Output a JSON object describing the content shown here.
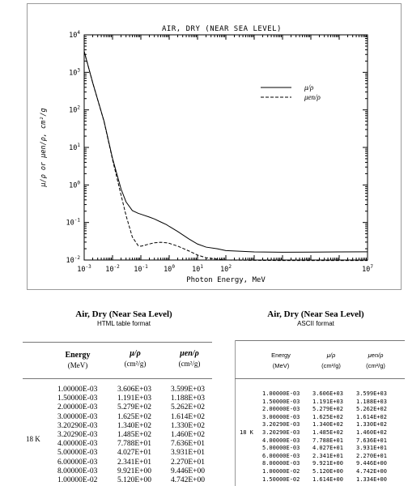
{
  "chart_data": {
    "type": "line",
    "title": "AIR, DRY (NEAR SEA LEVEL)",
    "xlabel": "Photon Energy, MeV",
    "ylabel": "μ/ρ  or  μen/ρ,  cm²/g",
    "x_scale": "log",
    "y_scale": "log",
    "xlim": [
      0.001,
      10000000
    ],
    "ylim": [
      0.01,
      10000
    ],
    "x_ticks": [
      "10-3",
      "10-2",
      "10-1",
      "100",
      "101",
      "102"
    ],
    "x_last_tick": "107",
    "y_ticks": [
      "10-2",
      "10-1",
      "100",
      "101",
      "102",
      "103",
      "104"
    ],
    "legend": {
      "placement": "right-middle",
      "entries": [
        "μ/ρ",
        "μen/ρ"
      ]
    },
    "series": [
      {
        "name": "μ/ρ",
        "style": "solid",
        "x": [
          0.001,
          0.002,
          0.005,
          0.01,
          0.02,
          0.03,
          0.05,
          0.08,
          0.1,
          0.2,
          0.3,
          0.5,
          0.8,
          1,
          2,
          5,
          10,
          20,
          50,
          100,
          1000,
          10000,
          100000,
          1000000,
          10000000
        ],
        "y": [
          3606,
          527.9,
          50.77,
          5.12,
          0.7779,
          0.3538,
          0.208,
          0.1757,
          0.1662,
          0.1394,
          0.1242,
          0.1034,
          0.08765,
          0.07868,
          0.05737,
          0.03633,
          0.02669,
          0.02208,
          0.0199,
          0.01781,
          0.0164,
          0.0161,
          0.0162,
          0.0164,
          0.0165
        ]
      },
      {
        "name": "μen/ρ",
        "style": "dashed",
        "x": [
          0.001,
          0.002,
          0.005,
          0.01,
          0.02,
          0.03,
          0.05,
          0.08,
          0.1,
          0.2,
          0.3,
          0.5,
          0.8,
          1,
          2,
          5,
          10,
          20,
          50,
          100,
          1000,
          10000,
          100000,
          1000000,
          10000000
        ],
        "y": [
          3599,
          526.2,
          49.62,
          4.742,
          0.5389,
          0.1537,
          0.04098,
          0.02429,
          0.02325,
          0.02672,
          0.02872,
          0.02966,
          0.02882,
          0.02789,
          0.02345,
          0.01739,
          0.01356,
          0.0115,
          0.0105,
          0.01,
          0.0098,
          0.0097,
          0.0097,
          0.0097,
          0.0097
        ]
      }
    ]
  },
  "html_table": {
    "title": "Air, Dry (Near Sea Level)",
    "subtitle": "HTML table format",
    "headers": {
      "energy": "Energy",
      "energy_unit": "(MeV)",
      "mu": "μ/ρ",
      "mu_unit": "(cm²/g)",
      "muen": "μen/ρ",
      "muen_unit": "(cm²/g)"
    },
    "edge_label": "18 K",
    "energy": [
      "1.00000E-03",
      "1.50000E-03",
      "2.00000E-03",
      "3.00000E-03",
      "3.20290E-03",
      "3.20290E-03",
      "4.00000E-03",
      "5.00000E-03",
      "6.00000E-03",
      "8.00000E-03",
      "1.00000E-02"
    ],
    "mu": [
      "3.606E+03",
      "1.191E+03",
      "5.279E+02",
      "1.625E+02",
      "1.340E+02",
      "1.485E+02",
      "7.788E+01",
      "4.027E+01",
      "2.341E+01",
      "9.921E+00",
      "5.120E+00"
    ],
    "muen": [
      "3.599E+03",
      "1.188E+03",
      "5.262E+02",
      "1.614E+02",
      "1.330E+02",
      "1.460E+02",
      "7.636E+01",
      "3.931E+01",
      "2.270E+01",
      "9.446E+00",
      "4.742E+00"
    ]
  },
  "ascii_table": {
    "title": "Air, Dry (Near Sea Level)",
    "subtitle": "ASCII format",
    "headers": {
      "energy": "Energy",
      "energy_unit": "(MeV)",
      "mu": "μ/ρ",
      "mu_unit": "(cm²/g)",
      "muen": "μen/ρ",
      "muen_unit": "(cm²/g)"
    },
    "edge_label": "18 K",
    "energy": [
      "1.00000E-03",
      "1.50000E-03",
      "2.00000E-03",
      "3.00000E-03",
      "3.20290E-03",
      "3.20290E-03",
      "4.00000E-03",
      "5.00000E-03",
      "6.00000E-03",
      "8.00000E-03",
      "1.00000E-02",
      "1.50000E-02"
    ],
    "mu": [
      "3.606E+03",
      "1.191E+03",
      "5.279E+02",
      "1.625E+02",
      "1.340E+02",
      "1.485E+02",
      "7.788E+01",
      "4.027E+01",
      "2.341E+01",
      "9.921E+00",
      "5.120E+00",
      "1.614E+00"
    ],
    "muen": [
      "3.599E+03",
      "1.188E+03",
      "5.262E+02",
      "1.614E+02",
      "1.330E+02",
      "1.460E+02",
      "7.636E+01",
      "3.931E+01",
      "2.270E+01",
      "9.446E+00",
      "4.742E+00",
      "1.334E+00"
    ]
  }
}
